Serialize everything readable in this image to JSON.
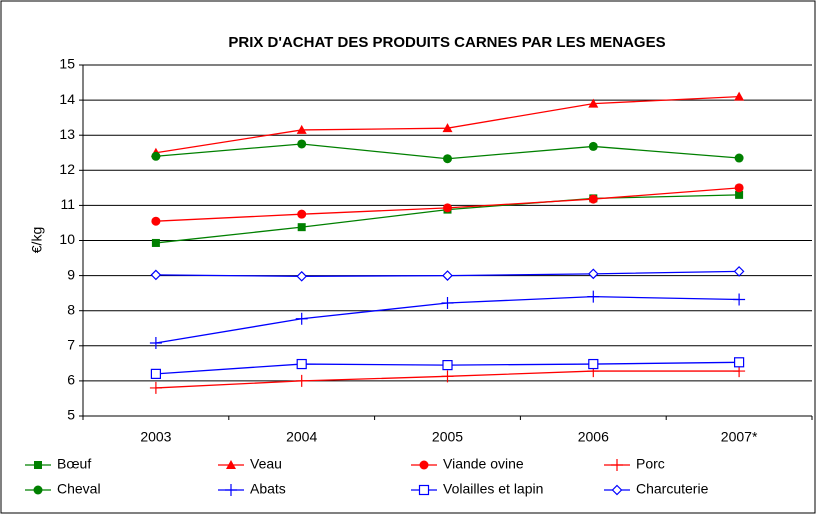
{
  "chart_data": {
    "type": "line",
    "title": "PRIX D'ACHAT DES PRODUITS CARNES PAR LES MENAGES",
    "y_label": "€/kg",
    "categories": [
      "2003",
      "2004",
      "2005",
      "2006",
      "2007*"
    ],
    "ylim": [
      5,
      15
    ],
    "yticks": [
      5,
      6,
      7,
      8,
      9,
      10,
      11,
      12,
      13,
      14,
      15
    ],
    "grid": true,
    "legend": "bottom",
    "series": [
      {
        "name": "Bœuf",
        "color": "#008000",
        "marker": "square",
        "values": [
          9.93,
          10.38,
          10.88,
          11.2,
          11.3
        ]
      },
      {
        "name": "Veau",
        "color": "#ff0000",
        "marker": "triangle",
        "values": [
          12.5,
          13.15,
          13.2,
          13.9,
          14.1
        ]
      },
      {
        "name": "Viande ovine",
        "color": "#ff0000",
        "marker": "circle",
        "values": [
          10.55,
          10.75,
          10.93,
          11.18,
          11.5
        ]
      },
      {
        "name": "Porc",
        "color": "#ff0000",
        "marker": "plus",
        "values": [
          5.8,
          6.0,
          6.13,
          6.28,
          6.28
        ]
      },
      {
        "name": "Cheval",
        "color": "#008000",
        "marker": "circle",
        "values": [
          12.4,
          12.75,
          12.33,
          12.68,
          12.35
        ]
      },
      {
        "name": "Abats",
        "color": "#0000ff",
        "marker": "plus",
        "values": [
          7.08,
          7.77,
          8.22,
          8.4,
          8.32
        ]
      },
      {
        "name": "Volailles et lapin",
        "color": "#0000ff",
        "marker": "open-square",
        "values": [
          6.2,
          6.48,
          6.45,
          6.48,
          6.53
        ]
      },
      {
        "name": "Charcuterie",
        "color": "#0000ff",
        "marker": "open-diamond",
        "values": [
          9.02,
          8.98,
          9.0,
          9.05,
          9.12
        ]
      }
    ]
  }
}
